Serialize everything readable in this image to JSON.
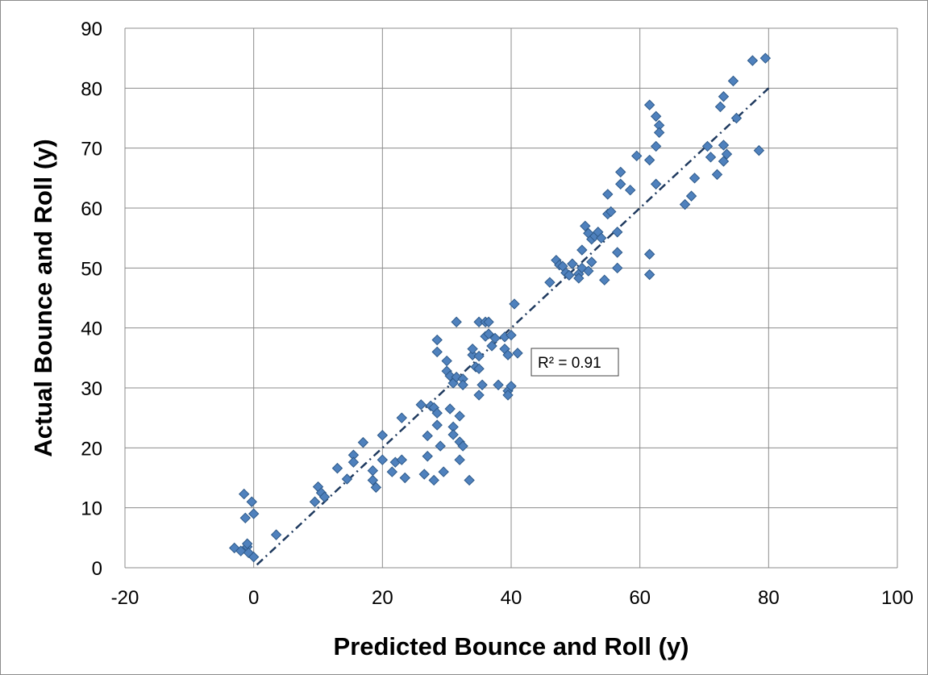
{
  "chart_data": {
    "type": "scatter",
    "title": "",
    "xlabel": "Predicted Bounce and Roll (y)",
    "ylabel": "Actual Bounce and Roll (y)",
    "xlim": [
      -20,
      100
    ],
    "ylim": [
      0,
      90
    ],
    "xticks": [
      "-20",
      "0",
      "20",
      "40",
      "60",
      "80",
      "100"
    ],
    "yticks": [
      "0",
      "10",
      "20",
      "30",
      "40",
      "50",
      "60",
      "70",
      "80",
      "90"
    ],
    "grid": true,
    "legend": "none",
    "marker_color": "#4f81bd",
    "trendline": {
      "type": "linear",
      "style": "dash-dot",
      "color": "#1f3a5f",
      "x": [
        0.5,
        80
      ],
      "y": [
        0.5,
        80
      ]
    },
    "annotation": "R² = 0.91",
    "series": [
      {
        "marker": "diamond",
        "points": [
          [
            -3,
            3.3
          ],
          [
            -2,
            2.8
          ],
          [
            -1.5,
            12.3
          ],
          [
            -1.3,
            8.3
          ],
          [
            -1,
            3.5
          ],
          [
            -1,
            4
          ],
          [
            -0.8,
            2.5
          ],
          [
            -0.3,
            11
          ],
          [
            0,
            9
          ],
          [
            0,
            1.8
          ],
          [
            3.5,
            5.5
          ],
          [
            9.5,
            11
          ],
          [
            10,
            13.5
          ],
          [
            10.5,
            12.5
          ],
          [
            11,
            11.8
          ],
          [
            13,
            16.6
          ],
          [
            14.5,
            14.8
          ],
          [
            15.5,
            18.8
          ],
          [
            15.5,
            17.6
          ],
          [
            17,
            20.9
          ],
          [
            18.5,
            14.6
          ],
          [
            18.5,
            16.2
          ],
          [
            19,
            13.4
          ],
          [
            20,
            22.1
          ],
          [
            20,
            18
          ],
          [
            21.5,
            16
          ],
          [
            22,
            17.6
          ],
          [
            23,
            18
          ],
          [
            23,
            25
          ],
          [
            23.5,
            15
          ],
          [
            26,
            27.2
          ],
          [
            26.5,
            15.6
          ],
          [
            27,
            18.6
          ],
          [
            27,
            22
          ],
          [
            27.5,
            27
          ],
          [
            28,
            14.6
          ],
          [
            28,
            26.7
          ],
          [
            28.5,
            38
          ],
          [
            28.5,
            36
          ],
          [
            28.5,
            25.8
          ],
          [
            28.5,
            23.8
          ],
          [
            29,
            20.3
          ],
          [
            29.5,
            16
          ],
          [
            30,
            34.5
          ],
          [
            30,
            32.8
          ],
          [
            30.5,
            32
          ],
          [
            30.5,
            26.5
          ],
          [
            31,
            30.8
          ],
          [
            31,
            23.5
          ],
          [
            31,
            22.2
          ],
          [
            31.5,
            41
          ],
          [
            31.5,
            31.8
          ],
          [
            32,
            25.3
          ],
          [
            32,
            21
          ],
          [
            32,
            18
          ],
          [
            32.5,
            31.5
          ],
          [
            32.5,
            30.5
          ],
          [
            32.5,
            20.3
          ],
          [
            33.5,
            14.6
          ],
          [
            34,
            35.5
          ],
          [
            34,
            36.5
          ],
          [
            34.5,
            33.5
          ],
          [
            35,
            41
          ],
          [
            35,
            35.3
          ],
          [
            35,
            33.2
          ],
          [
            35,
            28.8
          ],
          [
            35.5,
            30.5
          ],
          [
            36,
            41
          ],
          [
            36,
            38.6
          ],
          [
            36.5,
            41
          ],
          [
            36.5,
            39
          ],
          [
            37,
            37
          ],
          [
            37.5,
            38.3
          ],
          [
            38,
            30.5
          ],
          [
            39,
            38.5
          ],
          [
            39,
            36.5
          ],
          [
            39.5,
            35.5
          ],
          [
            39.5,
            29.5
          ],
          [
            39.5,
            28.8
          ],
          [
            40,
            38.8
          ],
          [
            40,
            30.3
          ],
          [
            40.5,
            44
          ],
          [
            41,
            35.8
          ],
          [
            46,
            47.6
          ],
          [
            47,
            51.3
          ],
          [
            47.5,
            50.5
          ],
          [
            48,
            50.3
          ],
          [
            48.5,
            49.2
          ],
          [
            49,
            48.8
          ],
          [
            49.5,
            50.7
          ],
          [
            50.5,
            49
          ],
          [
            50.5,
            48.3
          ],
          [
            51,
            53
          ],
          [
            51,
            50
          ],
          [
            51.5,
            57
          ],
          [
            52,
            55.8
          ],
          [
            52,
            49.5
          ],
          [
            52.5,
            51
          ],
          [
            52.5,
            54.8
          ],
          [
            53,
            55.3
          ],
          [
            53.5,
            56
          ],
          [
            54,
            55
          ],
          [
            54.5,
            48
          ],
          [
            55,
            62.3
          ],
          [
            55,
            59
          ],
          [
            55.5,
            59.4
          ],
          [
            56.5,
            56
          ],
          [
            56.5,
            50
          ],
          [
            56.5,
            52.6
          ],
          [
            57,
            64
          ],
          [
            57,
            66
          ],
          [
            58.5,
            63
          ],
          [
            59.5,
            68.7
          ],
          [
            61.5,
            77.2
          ],
          [
            61.5,
            68
          ],
          [
            61.5,
            52.3
          ],
          [
            61.5,
            48.9
          ],
          [
            62.5,
            70.3
          ],
          [
            62.5,
            75.3
          ],
          [
            62.5,
            64
          ],
          [
            63,
            73.8
          ],
          [
            63,
            72.6
          ],
          [
            67,
            60.6
          ],
          [
            68,
            62
          ],
          [
            68.5,
            65
          ],
          [
            70.5,
            70.3
          ],
          [
            71,
            68.5
          ],
          [
            72,
            65.6
          ],
          [
            72.5,
            76.9
          ],
          [
            73,
            78.6
          ],
          [
            73,
            70.5
          ],
          [
            73,
            67.8
          ],
          [
            73.5,
            69
          ],
          [
            74.5,
            81.2
          ],
          [
            75,
            75
          ],
          [
            77.5,
            84.6
          ],
          [
            78.5,
            69.6
          ],
          [
            79.5,
            85
          ]
        ]
      }
    ]
  }
}
